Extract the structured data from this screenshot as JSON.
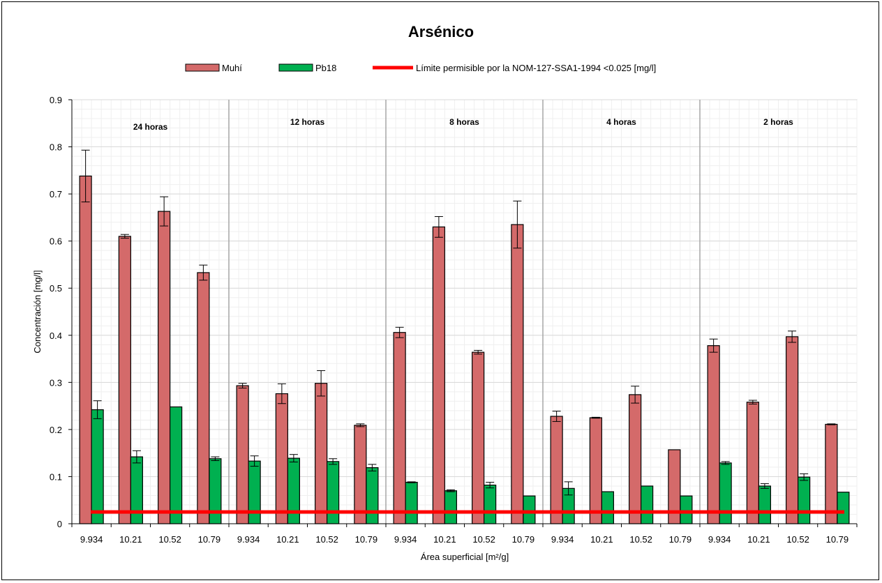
{
  "chart_data": {
    "type": "bar",
    "title": "Arsénico",
    "xlabel": "Área superficial [m²/g]",
    "ylabel": "Concentración [mg/l]",
    "ylim": [
      0,
      0.9
    ],
    "yticks": [
      "0",
      "0.1",
      "0.2",
      "0.3",
      "0.4",
      "0.5",
      "0.6",
      "0.7",
      "0.8",
      "0.9"
    ],
    "grid": true,
    "legend_position": "top",
    "groups": [
      "24 horas",
      "12 horas",
      "8 horas",
      "4 horas",
      "2 horas"
    ],
    "categories": [
      "9.934",
      "10.21",
      "10.52",
      "10.79",
      "9.934",
      "10.21",
      "10.52",
      "10.79",
      "9.934",
      "10.21",
      "10.52",
      "10.79",
      "9.934",
      "10.21",
      "10.52",
      "10.79",
      "9.934",
      "10.21",
      "10.52",
      "10.79"
    ],
    "series": [
      {
        "name": "Muhí",
        "color": "#d46a6a",
        "values": [
          0.738,
          0.61,
          0.663,
          0.533,
          0.293,
          0.276,
          0.298,
          0.209,
          0.406,
          0.63,
          0.364,
          0.635,
          0.228,
          0.225,
          0.274,
          0.157,
          0.378,
          0.258,
          0.397,
          0.211
        ],
        "errors": [
          0.055,
          0.004,
          0.031,
          0.016,
          0.005,
          0.021,
          0.027,
          0.003,
          0.011,
          0.022,
          0.004,
          0.05,
          0.011,
          0.001,
          0.018,
          0.0,
          0.014,
          0.004,
          0.012,
          0.001
        ]
      },
      {
        "name": "Pb18",
        "color": "#00b050",
        "values": [
          0.242,
          0.142,
          0.248,
          0.138,
          0.133,
          0.139,
          0.132,
          0.119,
          0.088,
          0.07,
          0.082,
          0.059,
          0.075,
          0.068,
          0.08,
          0.059,
          0.129,
          0.08,
          0.099,
          0.067
        ],
        "errors": [
          0.019,
          0.013,
          0.0,
          0.004,
          0.011,
          0.008,
          0.006,
          0.007,
          0.001,
          0.002,
          0.006,
          0.0,
          0.014,
          0.0,
          0.0,
          0.0,
          0.003,
          0.005,
          0.007,
          0.0
        ]
      }
    ],
    "limit_line": {
      "name": "Límite permisible por la NOM-127-SSA1-1994 <0.025 [mg/l]",
      "value": 0.025,
      "color": "#ff0000"
    }
  }
}
